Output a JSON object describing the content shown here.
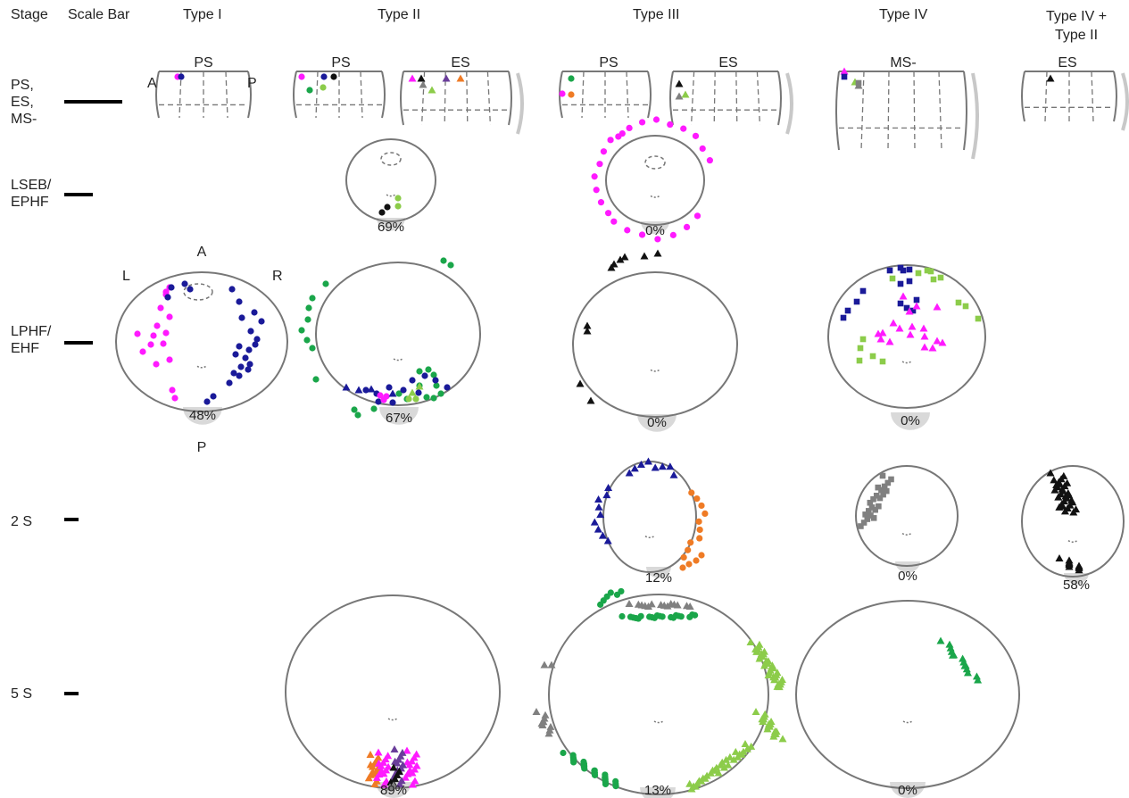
{
  "headers": {
    "stage": "Stage",
    "scale_bar": "Scale Bar",
    "type1": "Type I",
    "type2": "Type II",
    "type3": "Type III",
    "type4": "Type IV",
    "type4_plus_type2": "Type IV +\nType II"
  },
  "rows": {
    "r1": "PS,\nES,\nMS-",
    "r2": "LSEB/\nEPHF",
    "r3": "LPHF/\nEHF",
    "r4": "2 S",
    "r5": "5 S"
  },
  "embryo_labels": {
    "type1_ps": "PS",
    "type2_ps": "PS",
    "type2_es": "ES",
    "type3_ps": "PS",
    "type3_es": "ES",
    "type4_ms": "MS-",
    "type42_es": "ES"
  },
  "axis_labels": {
    "A": "A",
    "P": "P",
    "L": "L",
    "R": "R"
  },
  "percents": {
    "t2_lseb": "69%",
    "t3_lseb": "0%",
    "t1_lphf": "48%",
    "t2_lphf": "67%",
    "t3_lphf": "0%",
    "t4_lphf": "0%",
    "t3_2s": "12%",
    "t4_2s": "0%",
    "t42_2s": "58%",
    "t2_5s": "89%",
    "t3_5s": "13%",
    "t4_5s": "0%"
  },
  "colors": {
    "magenta": "#ff1aff",
    "navy": "#1a1a99",
    "green": "#1aa64a",
    "lightgreen": "#8ccc4a",
    "orange": "#ef7b25",
    "purple": "#6a3d9a",
    "black": "#111111",
    "gray": "#808080",
    "outline": "#777777",
    "shadow": "#d9d9d9"
  }
}
